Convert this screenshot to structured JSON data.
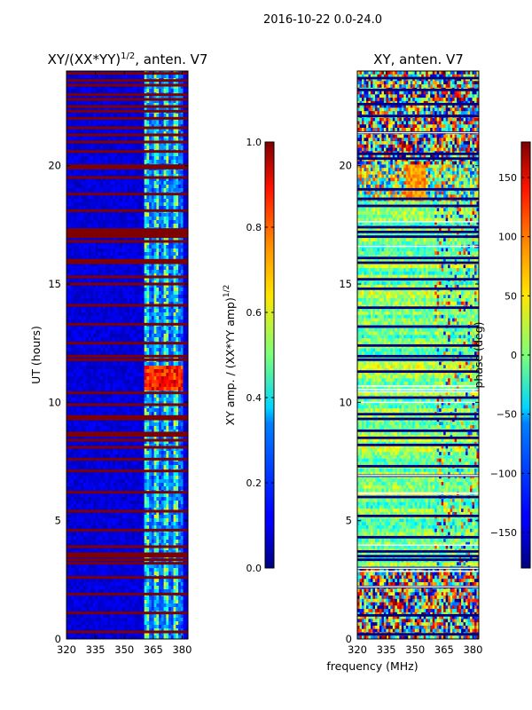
{
  "chart_data": [
    {
      "type": "heatmap",
      "panel": "left",
      "title": "XY/(XX*YY)",
      "title_sup": "1/2",
      "title_suffix": ", anten. V7",
      "xlabel": "",
      "ylabel": "UT (hours)",
      "xlim": [
        320,
        383
      ],
      "ylim": [
        0,
        24
      ],
      "xticks": [
        "320",
        "335",
        "350",
        "365",
        "380"
      ],
      "xtick_values": [
        320,
        335,
        350,
        365,
        380
      ],
      "yticks": [
        "0",
        "5",
        "10",
        "15",
        "20"
      ],
      "ytick_values": [
        0,
        5,
        10,
        15,
        20
      ],
      "colormap": "jet",
      "colorbar": {
        "label": "XY amp. / (XX*YY amp)",
        "label_sup": "1/2",
        "vmin": 0.0,
        "vmax": 1.0,
        "ticks": [
          "0.0",
          "0.2",
          "0.4",
          "0.6",
          "0.8",
          "1.0"
        ],
        "tick_values": [
          0.0,
          0.2,
          0.4,
          0.6,
          0.8,
          1.0
        ]
      },
      "value_summary": {
        "background": 0.05,
        "active_band_mhz": [
          360,
          380
        ],
        "active_band_value": 0.4,
        "bright_patch_hours": [
          10.5,
          11.5
        ],
        "bright_patch_value": 0.75
      },
      "saturated_rows_hours": [
        0.3,
        1.1,
        1.9,
        2.6,
        3.2,
        3.35,
        3.5,
        3.6,
        3.9,
        4.6,
        5.4,
        6.2,
        7.1,
        7.6,
        8.1,
        8.4,
        8.6,
        8.7,
        9.3,
        9.4,
        9.9,
        10.4,
        11.8,
        11.95,
        12.5,
        13.3,
        14.1,
        15.0,
        15.3,
        15.9,
        16.0,
        16.8,
        17.0,
        17.1,
        17.2,
        17.3,
        18.1,
        18.8,
        19.5,
        19.9,
        20.0,
        20.6,
        21.0,
        21.3,
        21.6,
        22.0,
        22.3,
        22.5,
        22.8,
        23.0,
        23.4,
        23.6,
        23.9
      ]
    },
    {
      "type": "heatmap",
      "panel": "right",
      "title": "XY, anten. V7",
      "xlabel": "frequency (MHz)",
      "ylabel": "",
      "xlim": [
        320,
        383
      ],
      "ylim": [
        0,
        24
      ],
      "xticks": [
        "320",
        "335",
        "350",
        "365",
        "380"
      ],
      "xtick_values": [
        320,
        335,
        350,
        365,
        380
      ],
      "yticks": [
        "0",
        "5",
        "10",
        "15",
        "20"
      ],
      "ytick_values": [
        0,
        5,
        10,
        15,
        20
      ],
      "colormap": "jet",
      "colorbar": {
        "label": "phase (deg)",
        "vmin": -180,
        "vmax": 180,
        "ticks": [
          "−150",
          "−100",
          "−50",
          "0",
          "50",
          "100",
          "150"
        ],
        "tick_values": [
          -150,
          -100,
          -50,
          0,
          50,
          100,
          150
        ]
      },
      "value_summary": {
        "background": 0,
        "noisy_hours_low": [
          0,
          3
        ],
        "noisy_hours_high": [
          20,
          24
        ],
        "band_hours": [
          18.5,
          20.2
        ]
      },
      "flagged_rows_hours": [
        0.2,
        1.0,
        2.2,
        3.0,
        3.35,
        3.5,
        3.7,
        4.3,
        5.2,
        6.0,
        6.9,
        7.3,
        8.2,
        8.5,
        8.8,
        9.3,
        9.5,
        10.2,
        11.3,
        11.8,
        11.95,
        12.4,
        13.2,
        14.0,
        14.8,
        15.2,
        15.9,
        16.1,
        17.0,
        17.2,
        17.4,
        18.3,
        18.6,
        19.0,
        20.3,
        20.5,
        21.4,
        22.1,
        22.6,
        23.2,
        23.7
      ]
    }
  ],
  "suptitle": "2016-10-22 0.0-24.0",
  "colors": {
    "axis": "#000000",
    "background": "#ffffff"
  }
}
